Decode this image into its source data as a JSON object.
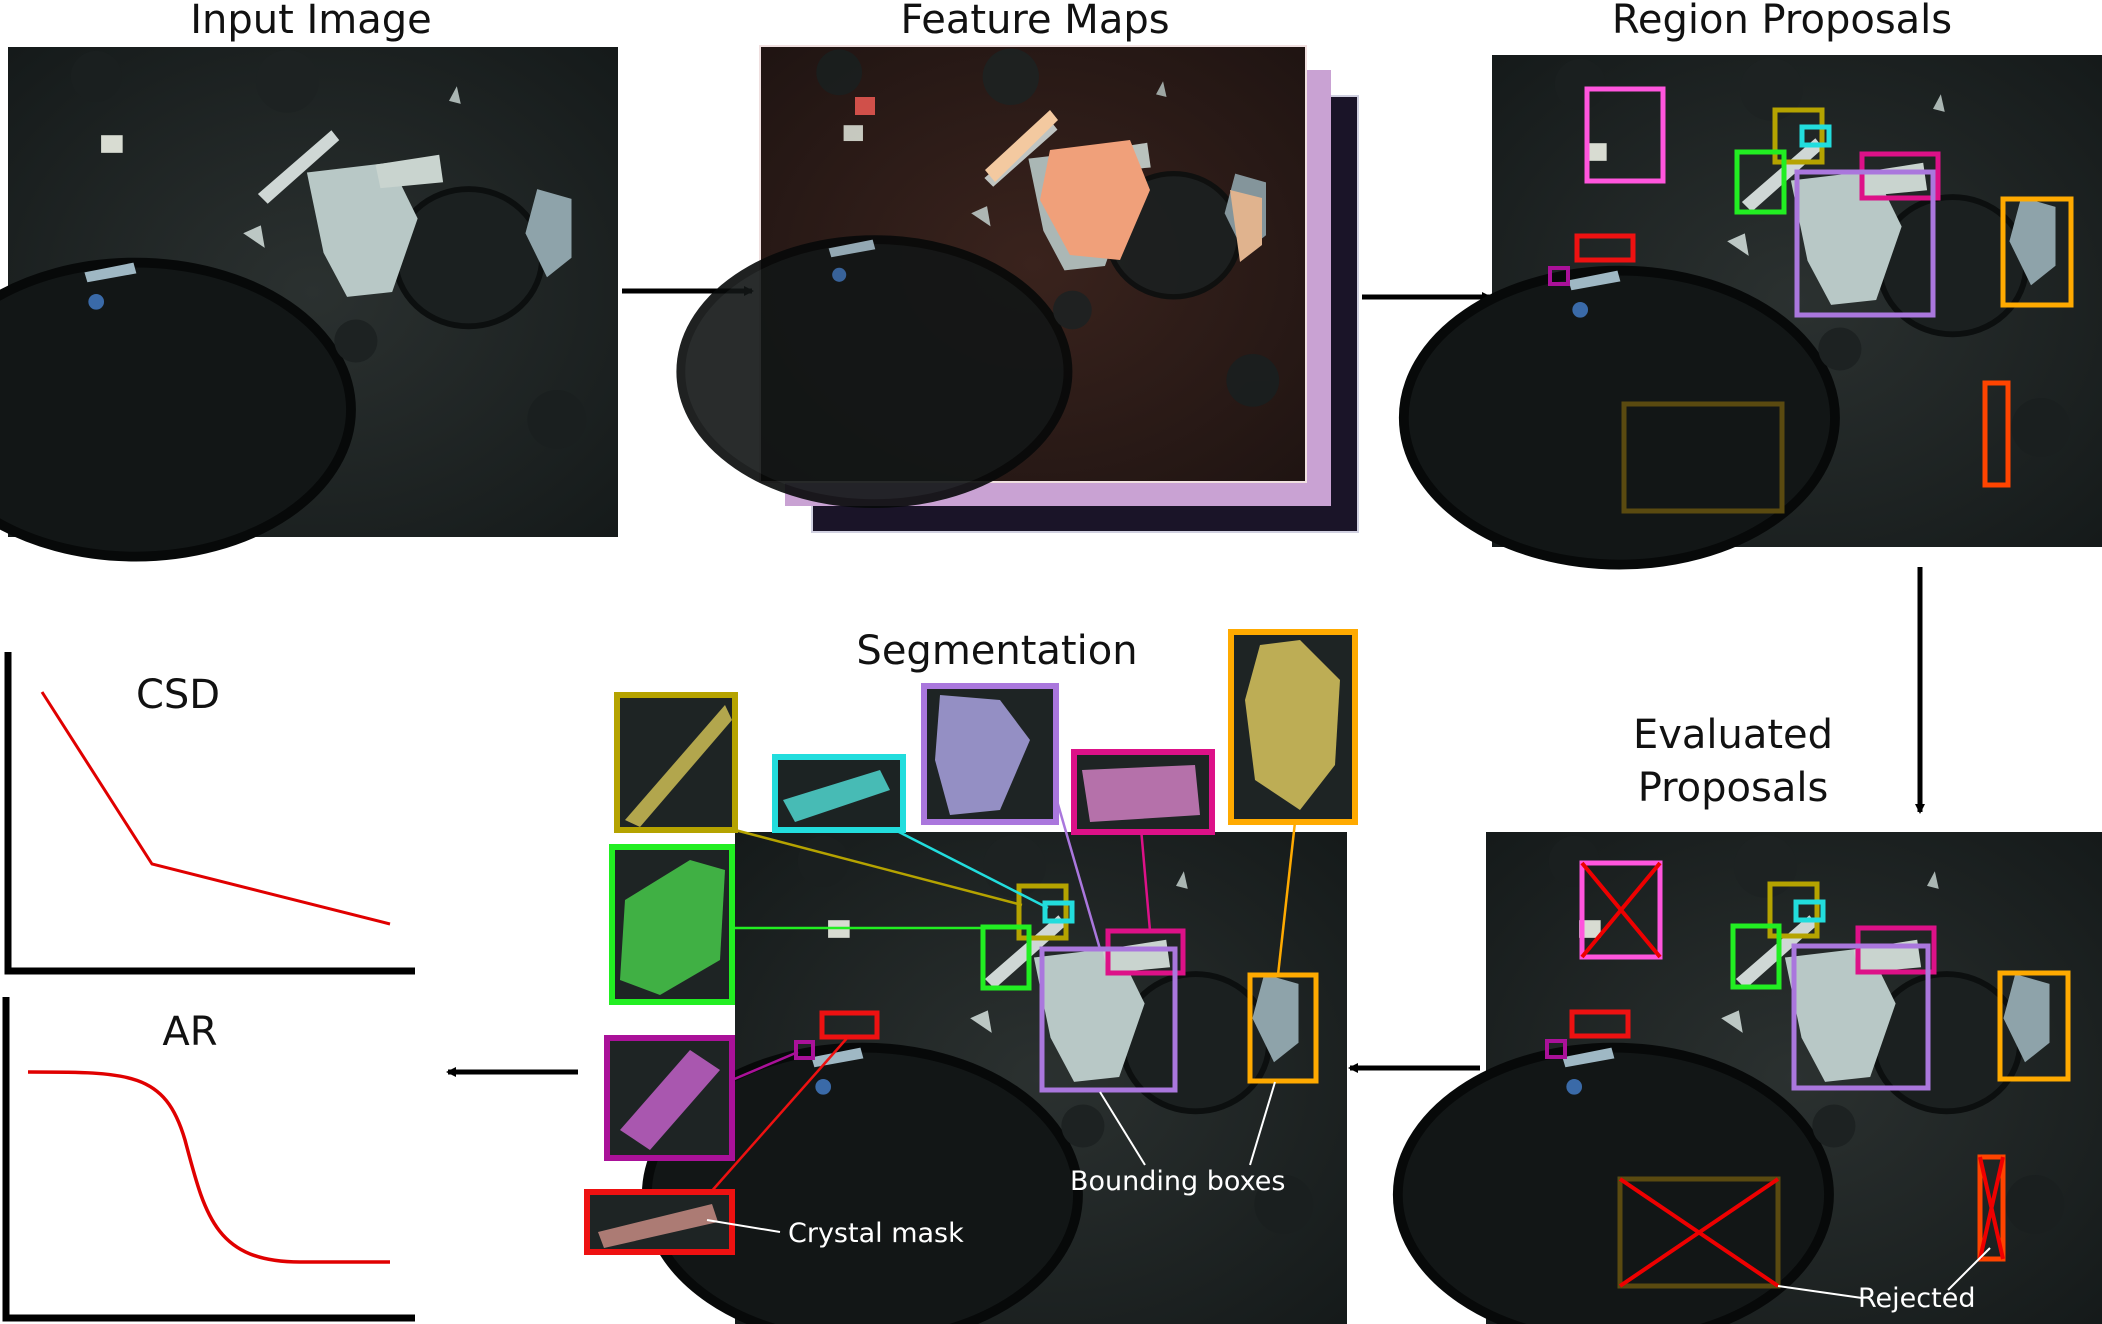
{
  "headings": {
    "input": "Input Image",
    "features": "Feature Maps",
    "proposals": "Region Proposals",
    "evaluated_line1": "Evaluated",
    "evaluated_line2": "Proposals",
    "segmentation": "Segmentation"
  },
  "plots": {
    "csd_label": "CSD",
    "ar_label": "AR",
    "curve_color": "#e00000"
  },
  "annotations": {
    "bounding_boxes": "Bounding boxes",
    "crystal_mask": "Crystal mask",
    "rejected": "Rejected"
  },
  "colors": {
    "pink": "#ff55dd",
    "olive": "#b5a300",
    "cyan": "#22dddd",
    "green": "#22ee22",
    "magenta": "#dd1188",
    "purple": "#aa77dd",
    "orange": "#ffaa00",
    "red": "#ee1111",
    "small_purple": "#aa1199",
    "brown": "#5a4a10",
    "red_orange": "#ff4400",
    "reject_cross": "#ee0000"
  }
}
